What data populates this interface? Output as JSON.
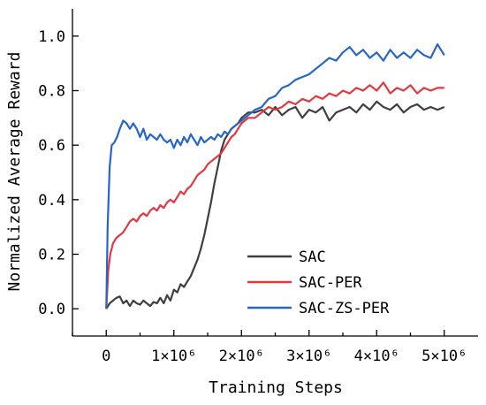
{
  "chart_data": {
    "type": "line",
    "xlabel": "Training Steps",
    "ylabel": "Normalized Average Reward",
    "xlim": [
      -500000,
      5500000
    ],
    "ylim": [
      -0.1,
      1.1
    ],
    "x_ticks": [
      {
        "value": 0,
        "label": "0"
      },
      {
        "value": 1000000,
        "label": "1×10⁶"
      },
      {
        "value": 2000000,
        "label": "2×10⁶"
      },
      {
        "value": 3000000,
        "label": "3×10⁶"
      },
      {
        "value": 4000000,
        "label": "4×10⁶"
      },
      {
        "value": 5000000,
        "label": "5×10⁶"
      }
    ],
    "y_ticks": [
      {
        "value": 0.0,
        "label": "0.0"
      },
      {
        "value": 0.2,
        "label": "0.2"
      },
      {
        "value": 0.4,
        "label": "0.4"
      },
      {
        "value": 0.6,
        "label": "0.6"
      },
      {
        "value": 0.8,
        "label": "0.8"
      },
      {
        "value": 1.0,
        "label": "1.0"
      }
    ],
    "grid": false,
    "legend_position": "bottom-right",
    "series": [
      {
        "name": "SAC",
        "color": "#3f3f3f",
        "points": [
          [
            0,
            0.0
          ],
          [
            50000,
            0.02
          ],
          [
            100000,
            0.03
          ],
          [
            150000,
            0.04
          ],
          [
            200000,
            0.045
          ],
          [
            250000,
            0.02
          ],
          [
            300000,
            0.03
          ],
          [
            350000,
            0.01
          ],
          [
            400000,
            0.03
          ],
          [
            450000,
            0.02
          ],
          [
            500000,
            0.015
          ],
          [
            550000,
            0.03
          ],
          [
            600000,
            0.02
          ],
          [
            650000,
            0.01
          ],
          [
            700000,
            0.025
          ],
          [
            750000,
            0.02
          ],
          [
            800000,
            0.04
          ],
          [
            850000,
            0.02
          ],
          [
            900000,
            0.05
          ],
          [
            950000,
            0.03
          ],
          [
            1000000,
            0.07
          ],
          [
            1050000,
            0.06
          ],
          [
            1100000,
            0.09
          ],
          [
            1150000,
            0.08
          ],
          [
            1200000,
            0.1
          ],
          [
            1250000,
            0.12
          ],
          [
            1300000,
            0.15
          ],
          [
            1350000,
            0.18
          ],
          [
            1400000,
            0.22
          ],
          [
            1450000,
            0.27
          ],
          [
            1500000,
            0.33
          ],
          [
            1550000,
            0.39
          ],
          [
            1600000,
            0.46
          ],
          [
            1650000,
            0.52
          ],
          [
            1700000,
            0.58
          ],
          [
            1750000,
            0.62
          ],
          [
            1800000,
            0.64
          ],
          [
            1850000,
            0.66
          ],
          [
            1900000,
            0.67
          ],
          [
            1950000,
            0.68
          ],
          [
            2000000,
            0.7
          ],
          [
            2100000,
            0.72
          ],
          [
            2200000,
            0.72
          ],
          [
            2300000,
            0.73
          ],
          [
            2400000,
            0.71
          ],
          [
            2500000,
            0.74
          ],
          [
            2600000,
            0.71
          ],
          [
            2700000,
            0.73
          ],
          [
            2800000,
            0.74
          ],
          [
            2900000,
            0.7
          ],
          [
            3000000,
            0.73
          ],
          [
            3100000,
            0.72
          ],
          [
            3200000,
            0.74
          ],
          [
            3300000,
            0.69
          ],
          [
            3400000,
            0.72
          ],
          [
            3500000,
            0.73
          ],
          [
            3600000,
            0.74
          ],
          [
            3700000,
            0.72
          ],
          [
            3800000,
            0.75
          ],
          [
            3900000,
            0.73
          ],
          [
            4000000,
            0.76
          ],
          [
            4100000,
            0.74
          ],
          [
            4200000,
            0.73
          ],
          [
            4300000,
            0.75
          ],
          [
            4400000,
            0.72
          ],
          [
            4500000,
            0.74
          ],
          [
            4600000,
            0.75
          ],
          [
            4700000,
            0.73
          ],
          [
            4800000,
            0.74
          ],
          [
            4900000,
            0.73
          ],
          [
            5000000,
            0.74
          ]
        ]
      },
      {
        "name": "SAC-PER",
        "color": "#e0393f",
        "points": [
          [
            0,
            0.0
          ],
          [
            30000,
            0.14
          ],
          [
            60000,
            0.2
          ],
          [
            100000,
            0.24
          ],
          [
            150000,
            0.26
          ],
          [
            200000,
            0.27
          ],
          [
            250000,
            0.28
          ],
          [
            300000,
            0.3
          ],
          [
            350000,
            0.32
          ],
          [
            400000,
            0.33
          ],
          [
            450000,
            0.32
          ],
          [
            500000,
            0.34
          ],
          [
            550000,
            0.35
          ],
          [
            600000,
            0.34
          ],
          [
            650000,
            0.36
          ],
          [
            700000,
            0.37
          ],
          [
            750000,
            0.36
          ],
          [
            800000,
            0.38
          ],
          [
            850000,
            0.37
          ],
          [
            900000,
            0.39
          ],
          [
            950000,
            0.4
          ],
          [
            1000000,
            0.39
          ],
          [
            1050000,
            0.41
          ],
          [
            1100000,
            0.43
          ],
          [
            1150000,
            0.42
          ],
          [
            1200000,
            0.44
          ],
          [
            1250000,
            0.45
          ],
          [
            1300000,
            0.47
          ],
          [
            1350000,
            0.49
          ],
          [
            1400000,
            0.5
          ],
          [
            1450000,
            0.51
          ],
          [
            1500000,
            0.53
          ],
          [
            1550000,
            0.54
          ],
          [
            1600000,
            0.55
          ],
          [
            1650000,
            0.56
          ],
          [
            1700000,
            0.57
          ],
          [
            1750000,
            0.59
          ],
          [
            1800000,
            0.61
          ],
          [
            1850000,
            0.63
          ],
          [
            1900000,
            0.64
          ],
          [
            1950000,
            0.66
          ],
          [
            2000000,
            0.68
          ],
          [
            2100000,
            0.7
          ],
          [
            2200000,
            0.7
          ],
          [
            2300000,
            0.72
          ],
          [
            2400000,
            0.74
          ],
          [
            2500000,
            0.73
          ],
          [
            2600000,
            0.74
          ],
          [
            2700000,
            0.76
          ],
          [
            2800000,
            0.75
          ],
          [
            2900000,
            0.77
          ],
          [
            3000000,
            0.76
          ],
          [
            3100000,
            0.78
          ],
          [
            3200000,
            0.77
          ],
          [
            3300000,
            0.79
          ],
          [
            3400000,
            0.78
          ],
          [
            3500000,
            0.8
          ],
          [
            3600000,
            0.79
          ],
          [
            3700000,
            0.81
          ],
          [
            3800000,
            0.8
          ],
          [
            3900000,
            0.82
          ],
          [
            4000000,
            0.8
          ],
          [
            4100000,
            0.83
          ],
          [
            4200000,
            0.79
          ],
          [
            4300000,
            0.81
          ],
          [
            4400000,
            0.8
          ],
          [
            4500000,
            0.82
          ],
          [
            4600000,
            0.79
          ],
          [
            4700000,
            0.81
          ],
          [
            4800000,
            0.8
          ],
          [
            4900000,
            0.81
          ],
          [
            5000000,
            0.81
          ]
        ]
      },
      {
        "name": "SAC-ZS-PER",
        "color": "#2766c6",
        "points": [
          [
            0,
            0.0
          ],
          [
            20000,
            0.3
          ],
          [
            50000,
            0.52
          ],
          [
            80000,
            0.6
          ],
          [
            120000,
            0.61
          ],
          [
            160000,
            0.63
          ],
          [
            200000,
            0.66
          ],
          [
            250000,
            0.69
          ],
          [
            300000,
            0.68
          ],
          [
            350000,
            0.66
          ],
          [
            400000,
            0.68
          ],
          [
            450000,
            0.66
          ],
          [
            500000,
            0.63
          ],
          [
            550000,
            0.66
          ],
          [
            600000,
            0.62
          ],
          [
            650000,
            0.64
          ],
          [
            700000,
            0.63
          ],
          [
            750000,
            0.62
          ],
          [
            800000,
            0.64
          ],
          [
            850000,
            0.62
          ],
          [
            900000,
            0.61
          ],
          [
            950000,
            0.62
          ],
          [
            1000000,
            0.59
          ],
          [
            1050000,
            0.62
          ],
          [
            1100000,
            0.6
          ],
          [
            1150000,
            0.63
          ],
          [
            1200000,
            0.61
          ],
          [
            1250000,
            0.64
          ],
          [
            1300000,
            0.62
          ],
          [
            1350000,
            0.6
          ],
          [
            1400000,
            0.63
          ],
          [
            1450000,
            0.61
          ],
          [
            1500000,
            0.62
          ],
          [
            1550000,
            0.63
          ],
          [
            1600000,
            0.62
          ],
          [
            1650000,
            0.64
          ],
          [
            1700000,
            0.63
          ],
          [
            1750000,
            0.65
          ],
          [
            1800000,
            0.64
          ],
          [
            1850000,
            0.66
          ],
          [
            1900000,
            0.67
          ],
          [
            1950000,
            0.68
          ],
          [
            2000000,
            0.69
          ],
          [
            2100000,
            0.71
          ],
          [
            2200000,
            0.73
          ],
          [
            2300000,
            0.74
          ],
          [
            2400000,
            0.77
          ],
          [
            2500000,
            0.78
          ],
          [
            2600000,
            0.81
          ],
          [
            2700000,
            0.82
          ],
          [
            2800000,
            0.84
          ],
          [
            2900000,
            0.85
          ],
          [
            3000000,
            0.86
          ],
          [
            3100000,
            0.88
          ],
          [
            3200000,
            0.9
          ],
          [
            3300000,
            0.92
          ],
          [
            3400000,
            0.91
          ],
          [
            3500000,
            0.94
          ],
          [
            3600000,
            0.96
          ],
          [
            3700000,
            0.93
          ],
          [
            3800000,
            0.95
          ],
          [
            3900000,
            0.92
          ],
          [
            4000000,
            0.94
          ],
          [
            4100000,
            0.91
          ],
          [
            4200000,
            0.95
          ],
          [
            4300000,
            0.92
          ],
          [
            4400000,
            0.94
          ],
          [
            4500000,
            0.92
          ],
          [
            4600000,
            0.95
          ],
          [
            4700000,
            0.93
          ],
          [
            4800000,
            0.92
          ],
          [
            4900000,
            0.97
          ],
          [
            5000000,
            0.93
          ]
        ]
      }
    ]
  }
}
